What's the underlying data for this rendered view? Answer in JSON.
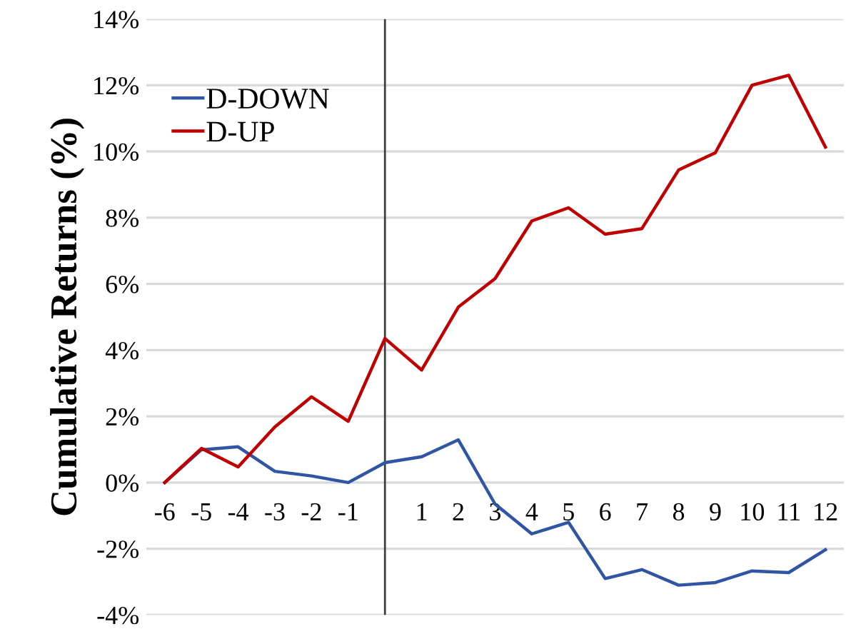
{
  "chart_data": {
    "type": "line",
    "ylabel": "Cumulative Returns (%)",
    "x": [
      -6,
      -5,
      -4,
      -3,
      -2,
      -1,
      0,
      1,
      2,
      3,
      4,
      5,
      6,
      7,
      8,
      9,
      10,
      11,
      12
    ],
    "series": [
      {
        "name": "D-DOWN",
        "color": "#2f55a4",
        "values": [
          0,
          0.99,
          1.08,
          0.34,
          0.2,
          0,
          0.6,
          0.78,
          1.29,
          -0.65,
          -1.55,
          -1.2,
          -2.9,
          -2.63,
          -3.1,
          -3.02,
          -2.67,
          -2.72,
          -2.03
        ]
      },
      {
        "name": "D-UP",
        "color": "#c00000",
        "values": [
          0,
          1.03,
          0.47,
          1.68,
          2.59,
          1.85,
          4.35,
          3.4,
          5.3,
          6.16,
          7.9,
          8.3,
          7.5,
          7.67,
          9.44,
          9.96,
          12.0,
          12.3,
          10.13
        ]
      }
    ],
    "xlim": [
      -6.5,
      12.5
    ],
    "xticks": [
      -6,
      -5,
      -4,
      -3,
      -2,
      -1,
      1,
      2,
      3,
      4,
      5,
      6,
      7,
      8,
      9,
      10,
      11,
      12
    ],
    "ylim": [
      -4,
      14
    ],
    "yticks": [
      {
        "value": -4,
        "label": "-4%"
      },
      {
        "value": -2,
        "label": "-2%"
      },
      {
        "value": 0,
        "label": "0%"
      },
      {
        "value": 2,
        "label": "2%"
      },
      {
        "value": 4,
        "label": "4%"
      },
      {
        "value": 6,
        "label": "6%"
      },
      {
        "value": 8,
        "label": "8%"
      },
      {
        "value": 10,
        "label": "10%"
      },
      {
        "value": 12,
        "label": "12%"
      },
      {
        "value": 14,
        "label": "14%"
      }
    ],
    "ref_lines": [
      {
        "axis": "x",
        "value": 0,
        "color": "#404040"
      }
    ],
    "grid": "y",
    "legend": "top left",
    "marker": "none",
    "line_style": "solid"
  }
}
